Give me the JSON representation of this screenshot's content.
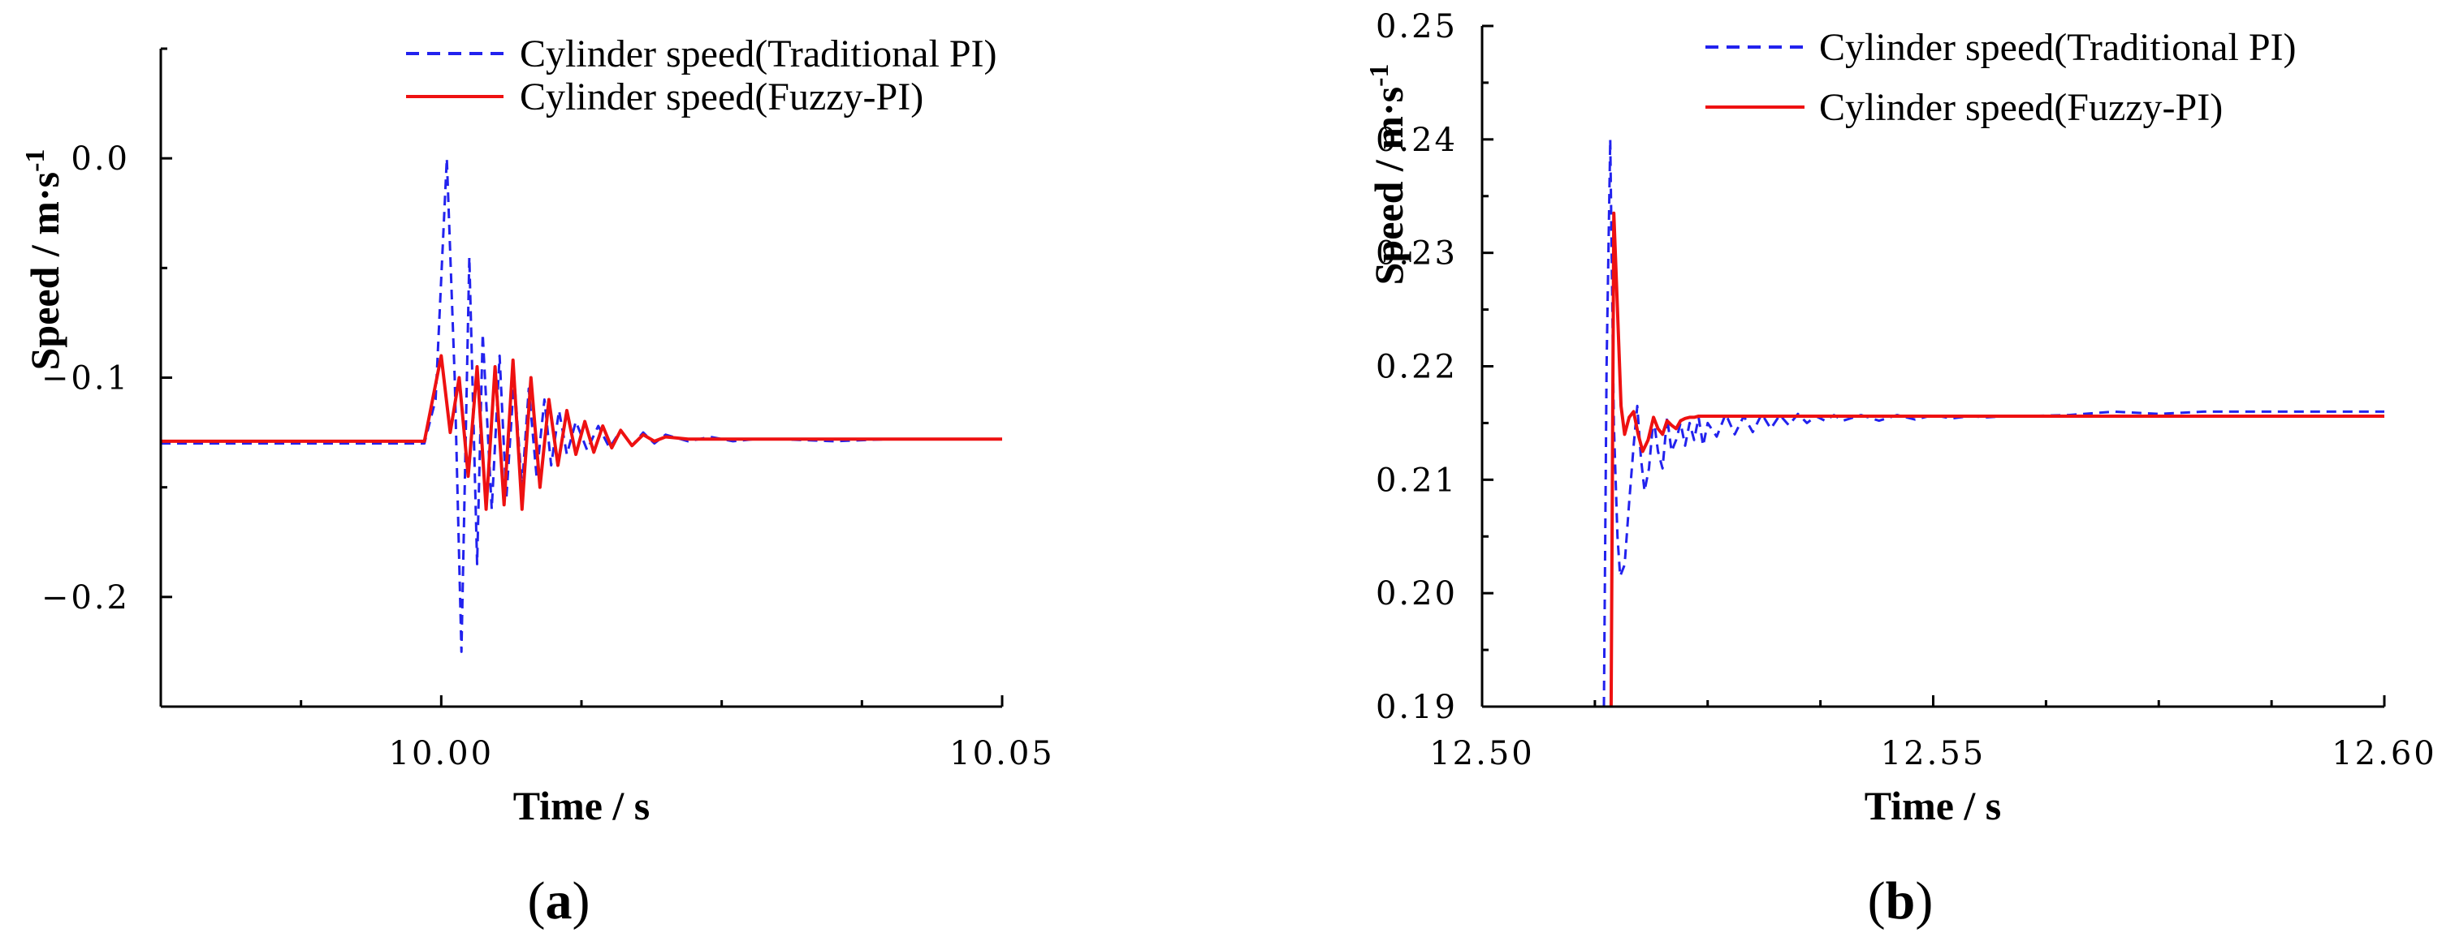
{
  "chart_data": [
    {
      "type": "line",
      "panel_label": "a",
      "title": "",
      "xlabel": "Time / s",
      "ylabel": "Speed / m·s",
      "ylabel_sup": "-1",
      "xlim": [
        9.975,
        10.05
      ],
      "ylim": [
        -0.25,
        0.05
      ],
      "xticks": [
        10.0,
        10.05
      ],
      "xtick_labels": [
        "10.00",
        "10.05"
      ],
      "xminor_ticks": [
        9.975,
        9.9875,
        10.0125,
        10.025,
        10.0375
      ],
      "yticks": [
        -0.2,
        -0.1,
        0.0
      ],
      "ytick_labels": [
        "−0.2",
        "−0.1",
        "0.0"
      ],
      "yminor_ticks": [
        -0.25,
        -0.15,
        -0.05,
        0.05
      ],
      "grid": false,
      "legend": "top",
      "colors": {
        "traditional": "#2222ee",
        "fuzzy": "#ee1111"
      },
      "series": [
        {
          "name": "Cylinder speed(Traditional PI)",
          "style": "dashed",
          "x": [
            9.975,
            9.9985,
            9.9995,
            10.0005,
            10.0012,
            10.0018,
            10.0025,
            10.0032,
            10.0037,
            10.0045,
            10.0052,
            10.0058,
            10.0065,
            10.0072,
            10.0078,
            10.0085,
            10.0092,
            10.0098,
            10.0105,
            10.0112,
            10.012,
            10.013,
            10.014,
            10.015,
            10.016,
            10.017,
            10.018,
            10.019,
            10.02,
            10.022,
            10.024,
            10.026,
            10.028,
            10.03,
            10.035,
            10.04,
            10.05
          ],
          "y": [
            -0.13,
            -0.13,
            -0.11,
            0.0,
            -0.1,
            -0.225,
            -0.045,
            -0.185,
            -0.08,
            -0.16,
            -0.09,
            -0.155,
            -0.1,
            -0.15,
            -0.105,
            -0.145,
            -0.11,
            -0.14,
            -0.115,
            -0.135,
            -0.12,
            -0.133,
            -0.122,
            -0.132,
            -0.124,
            -0.131,
            -0.125,
            -0.13,
            -0.126,
            -0.129,
            -0.127,
            -0.129,
            -0.128,
            -0.128,
            -0.129,
            -0.128,
            -0.128
          ]
        },
        {
          "name": "Cylinder speed(Fuzzy-PI)",
          "style": "solid",
          "x": [
            9.975,
            9.9985,
            10.0,
            10.0008,
            10.0016,
            10.0024,
            10.0032,
            10.004,
            10.0048,
            10.0056,
            10.0064,
            10.0072,
            10.008,
            10.0088,
            10.0096,
            10.0104,
            10.0112,
            10.012,
            10.0128,
            10.0136,
            10.0144,
            10.0152,
            10.016,
            10.017,
            10.018,
            10.019,
            10.02,
            10.022,
            10.025,
            10.03,
            10.05
          ],
          "y": [
            -0.129,
            -0.129,
            -0.09,
            -0.125,
            -0.1,
            -0.145,
            -0.095,
            -0.16,
            -0.095,
            -0.158,
            -0.092,
            -0.16,
            -0.1,
            -0.15,
            -0.11,
            -0.14,
            -0.115,
            -0.135,
            -0.12,
            -0.134,
            -0.122,
            -0.132,
            -0.124,
            -0.131,
            -0.126,
            -0.129,
            -0.127,
            -0.128,
            -0.128,
            -0.128,
            -0.128
          ]
        }
      ]
    },
    {
      "type": "line",
      "panel_label": "b",
      "title": "",
      "xlabel": "Time / s",
      "ylabel": "Speed / m·s",
      "ylabel_sup": "-1",
      "xlim": [
        12.5,
        12.6
      ],
      "ylim": [
        0.19,
        0.25
      ],
      "xticks": [
        12.5,
        12.55,
        12.6
      ],
      "xtick_labels": [
        "12.50",
        "12.55",
        "12.60"
      ],
      "xminor_ticks": [
        12.5125,
        12.525,
        12.5375,
        12.5625,
        12.575,
        12.5875
      ],
      "yticks": [
        0.19,
        0.2,
        0.21,
        0.22,
        0.23,
        0.24,
        0.25
      ],
      "ytick_labels": [
        "0.19",
        "0.20",
        "0.21",
        "0.22",
        "0.23",
        "0.24",
        "0.25"
      ],
      "yminor_ticks": [
        0.195,
        0.205,
        0.215,
        0.225,
        0.235,
        0.245
      ],
      "grid": false,
      "legend": "top",
      "colors": {
        "traditional": "#2222ee",
        "fuzzy": "#ee1111"
      },
      "series": [
        {
          "name": "Cylinder speed(Traditional PI)",
          "style": "dashed",
          "x": [
            12.5135,
            12.5138,
            12.5142,
            12.5146,
            12.515,
            12.5153,
            12.5158,
            12.5163,
            12.5168,
            12.5172,
            12.5176,
            12.518,
            12.5185,
            12.519,
            12.5195,
            12.52,
            12.5205,
            12.521,
            12.5215,
            12.522,
            12.5225,
            12.523,
            12.5235,
            12.524,
            12.5245,
            12.525,
            12.526,
            12.527,
            12.528,
            12.529,
            12.53,
            12.531,
            12.532,
            12.533,
            12.534,
            12.535,
            12.536,
            12.537,
            12.538,
            12.539,
            12.54,
            12.542,
            12.544,
            12.546,
            12.548,
            12.55,
            12.552,
            12.554,
            12.556,
            12.558,
            12.56,
            12.565,
            12.57,
            12.575,
            12.58,
            12.6
          ],
          "y": [
            0.19,
            0.22,
            0.24,
            0.215,
            0.205,
            0.2015,
            0.2025,
            0.208,
            0.213,
            0.2165,
            0.212,
            0.209,
            0.211,
            0.2155,
            0.2125,
            0.211,
            0.2155,
            0.2125,
            0.2135,
            0.215,
            0.213,
            0.215,
            0.2135,
            0.2155,
            0.213,
            0.215,
            0.2138,
            0.2158,
            0.214,
            0.2156,
            0.2142,
            0.2158,
            0.2145,
            0.2157,
            0.2148,
            0.2158,
            0.215,
            0.2156,
            0.2152,
            0.2157,
            0.2152,
            0.2157,
            0.2152,
            0.2157,
            0.2153,
            0.2157,
            0.2154,
            0.2156,
            0.2155,
            0.2156,
            0.2156,
            0.2157,
            0.216,
            0.2158,
            0.216,
            0.216
          ]
        },
        {
          "name": "Cylinder speed(Fuzzy-PI)",
          "style": "solid",
          "x": [
            12.5143,
            12.5146,
            12.515,
            12.5154,
            12.5158,
            12.5163,
            12.5168,
            12.5173,
            12.5178,
            12.5184,
            12.519,
            12.5195,
            12.52,
            12.5205,
            12.521,
            12.5215,
            12.522,
            12.5225,
            12.523,
            12.5235,
            12.524,
            12.525,
            12.527,
            12.53,
            12.535,
            12.54,
            12.55,
            12.56,
            12.6
          ],
          "y": [
            0.19,
            0.2335,
            0.225,
            0.2165,
            0.214,
            0.2155,
            0.216,
            0.214,
            0.2125,
            0.2135,
            0.2155,
            0.2145,
            0.214,
            0.2152,
            0.2148,
            0.2145,
            0.2152,
            0.2154,
            0.2155,
            0.2155,
            0.2156,
            0.2156,
            0.2156,
            0.2156,
            0.2156,
            0.2156,
            0.2156,
            0.2156,
            0.2156
          ]
        }
      ]
    }
  ]
}
